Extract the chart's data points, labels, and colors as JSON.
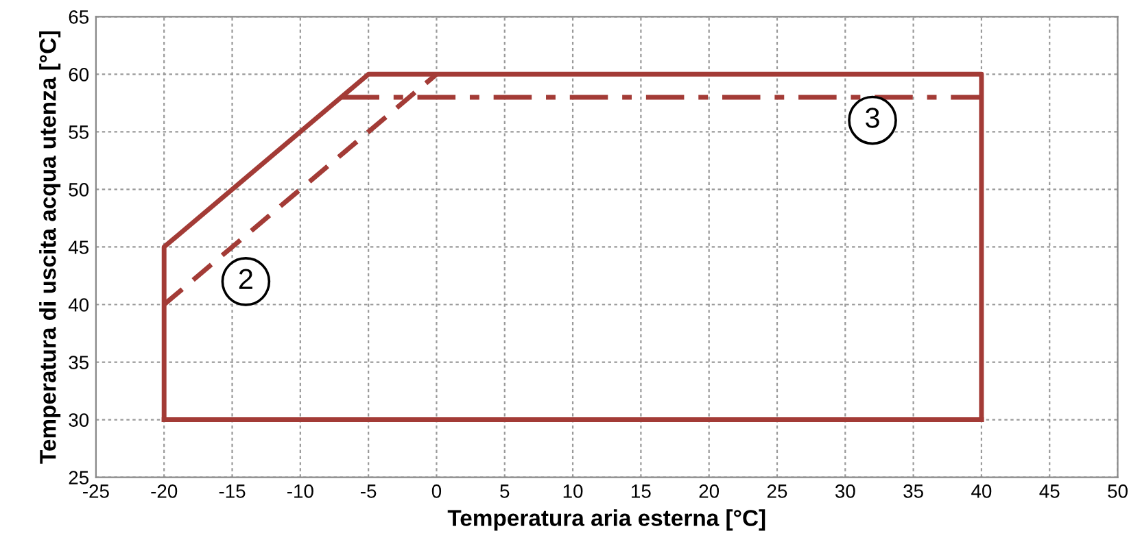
{
  "chart_data": {
    "type": "line",
    "xlabel": "Temperatura aria esterna [°C]",
    "ylabel": "Temperatura di uscita acqua utenza [°C]",
    "series": [
      {
        "color": "#a33b36",
        "line_style": "solid",
        "x": [
          -20,
          -20,
          -5,
          40,
          40
        ],
        "values": [
          30,
          45,
          60,
          60,
          30
        ]
      },
      {
        "color": "#a33b36",
        "line_style": "solid",
        "x": [
          -20,
          40
        ],
        "values": [
          30,
          30
        ]
      },
      {
        "color": "#a33b36",
        "line_style": "dashed",
        "x": [
          -20,
          0
        ],
        "values": [
          40,
          60
        ]
      },
      {
        "color": "#a33b36",
        "line_style": "dashdot",
        "x": [
          -7,
          40
        ],
        "values": [
          58,
          58
        ]
      }
    ],
    "annotations": [
      {
        "text": "2",
        "x": -14,
        "y": 42
      },
      {
        "text": "3",
        "x": 32,
        "y": 56
      }
    ],
    "xlim": [
      -25,
      50
    ],
    "xticks": [
      -25,
      -20,
      -15,
      -10,
      -5,
      0,
      5,
      10,
      15,
      20,
      25,
      30,
      35,
      40,
      45,
      50
    ],
    "ylim": [
      25,
      65
    ],
    "yticks": [
      25,
      30,
      35,
      40,
      45,
      50,
      55,
      60,
      65
    ],
    "grid": true,
    "marker": "none",
    "legend": false
  }
}
